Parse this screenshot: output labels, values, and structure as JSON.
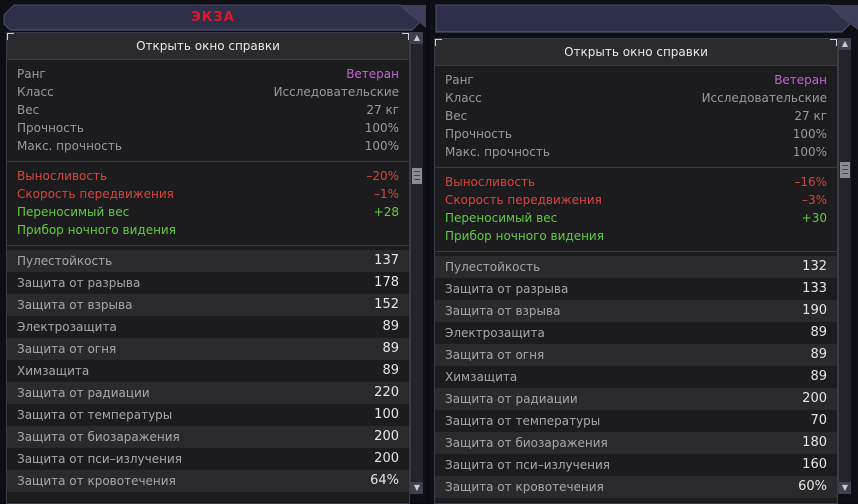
{
  "left_panel": {
    "title": "ЭКЗА",
    "help_label": "Открыть окно справки",
    "info": [
      {
        "label": "Ранг",
        "value": "Ветеран"
      },
      {
        "label": "Класс",
        "value": "Исследовательские"
      },
      {
        "label": "Вес",
        "value": "27 кг"
      },
      {
        "label": "Прочность",
        "value": "100%"
      },
      {
        "label": "Макс. прочность",
        "value": "100%"
      }
    ],
    "effects": [
      {
        "label": "Выносливость",
        "value": "–20%"
      },
      {
        "label": "Скорость передвижения",
        "value": "–1%"
      },
      {
        "label": "Переносимый вес",
        "value": "+28"
      },
      {
        "label": "Прибор ночного видения",
        "value": ""
      }
    ],
    "protection": [
      {
        "label": "Пулестойкость",
        "value": "137"
      },
      {
        "label": "Защита от разрыва",
        "value": "178"
      },
      {
        "label": "Защита от взрыва",
        "value": "152"
      },
      {
        "label": "Электрозащита",
        "value": "89"
      },
      {
        "label": "Защита от огня",
        "value": "89"
      },
      {
        "label": "Химзащита",
        "value": "89"
      },
      {
        "label": "Защита от радиации",
        "value": "220"
      },
      {
        "label": "Защита от температуры",
        "value": "100"
      },
      {
        "label": "Защита от биозаражения",
        "value": "200"
      },
      {
        "label": "Защита от пси–излучения",
        "value": "200"
      },
      {
        "label": "Защита от кровотечения",
        "value": "64%"
      }
    ]
  },
  "right_panel": {
    "title": "",
    "help_label": "Открыть окно справки",
    "info": [
      {
        "label": "Ранг",
        "value": "Ветеран"
      },
      {
        "label": "Класс",
        "value": "Исследовательские"
      },
      {
        "label": "Вес",
        "value": "27 кг"
      },
      {
        "label": "Прочность",
        "value": "100%"
      },
      {
        "label": "Макс. прочность",
        "value": "100%"
      }
    ],
    "effects": [
      {
        "label": "Выносливость",
        "value": "–16%"
      },
      {
        "label": "Скорость передвижения",
        "value": "–3%"
      },
      {
        "label": "Переносимый вес",
        "value": "+30"
      },
      {
        "label": "Прибор ночного видения",
        "value": ""
      }
    ],
    "protection": [
      {
        "label": "Пулестойкость",
        "value": "132"
      },
      {
        "label": "Защита от разрыва",
        "value": "133"
      },
      {
        "label": "Защита от взрыва",
        "value": "190"
      },
      {
        "label": "Электрозащита",
        "value": "89"
      },
      {
        "label": "Защита от огня",
        "value": "89"
      },
      {
        "label": "Химзащита",
        "value": "89"
      },
      {
        "label": "Защита от радиации",
        "value": "200"
      },
      {
        "label": "Защита от температуры",
        "value": "70"
      },
      {
        "label": "Защита от биозаражения",
        "value": "180"
      },
      {
        "label": "Защита от пси–излучения",
        "value": "160"
      },
      {
        "label": "Защита от кровотечения",
        "value": "60%"
      }
    ]
  },
  "scrollbar_icons": {
    "up": "▲",
    "down": "▼"
  },
  "colors": {
    "rank": "#c463d4",
    "negative": "#d9433e",
    "positive": "#5fce3c",
    "title": "#e0162b",
    "header": "#2d3048"
  }
}
